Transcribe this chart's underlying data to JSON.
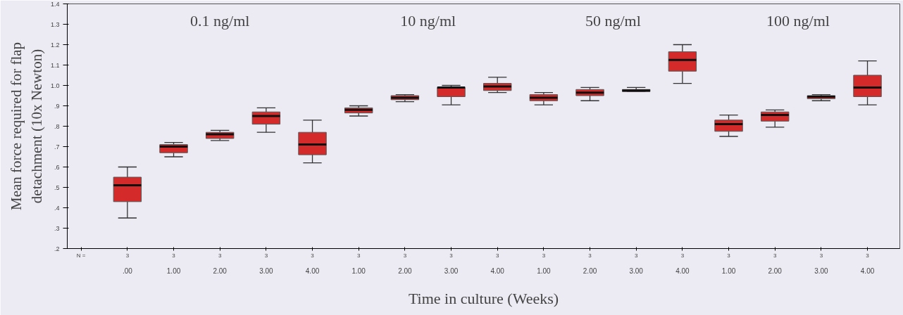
{
  "chart_data": {
    "type": "box",
    "xlabel": "Time in culture (Weeks)",
    "ylabel": "Mean force required for flap detachment (10x Newton)",
    "categories": [
      ".00",
      "1.00",
      "2.00",
      "3.00",
      "4.00",
      "1.00",
      "2.00",
      "3.00",
      "4.00",
      "1.00",
      "2.00",
      "3.00",
      "4.00",
      "1.00",
      "2.00",
      "3.00",
      "4.00"
    ],
    "series": [
      {
        "color": "#d42a2a",
        "boxes": [
          {
            "low": 0.35,
            "q1": 0.43,
            "median": 0.51,
            "q3": 0.55,
            "high": 0.6
          },
          {
            "low": 0.65,
            "q1": 0.67,
            "median": 0.7,
            "q3": 0.71,
            "high": 0.72
          },
          {
            "low": 0.73,
            "q1": 0.74,
            "median": 0.76,
            "q3": 0.77,
            "high": 0.78
          },
          {
            "low": 0.77,
            "q1": 0.81,
            "median": 0.85,
            "q3": 0.87,
            "high": 0.89
          },
          {
            "low": 0.62,
            "q1": 0.66,
            "median": 0.71,
            "q3": 0.77,
            "high": 0.83
          },
          {
            "low": 0.85,
            "q1": 0.865,
            "median": 0.88,
            "q3": 0.89,
            "high": 0.9
          },
          {
            "low": 0.92,
            "q1": 0.93,
            "median": 0.94,
            "q3": 0.95,
            "high": 0.955
          },
          {
            "low": 0.905,
            "q1": 0.945,
            "median": 0.99,
            "q3": 0.99,
            "high": 1.0
          },
          {
            "low": 0.965,
            "q1": 0.975,
            "median": 0.995,
            "q3": 1.01,
            "high": 1.04
          },
          {
            "low": 0.905,
            "q1": 0.925,
            "median": 0.94,
            "q3": 0.955,
            "high": 0.965
          },
          {
            "low": 0.925,
            "q1": 0.95,
            "median": 0.965,
            "q3": 0.98,
            "high": 0.99
          },
          {
            "low": 0.97,
            "q1": 0.97,
            "median": 0.975,
            "q3": 0.98,
            "high": 0.99
          },
          {
            "low": 1.01,
            "q1": 1.07,
            "median": 1.125,
            "q3": 1.165,
            "high": 1.2
          },
          {
            "low": 0.75,
            "q1": 0.775,
            "median": 0.81,
            "q3": 0.83,
            "high": 0.855
          },
          {
            "low": 0.795,
            "q1": 0.825,
            "median": 0.855,
            "q3": 0.87,
            "high": 0.88
          },
          {
            "low": 0.925,
            "q1": 0.935,
            "median": 0.945,
            "q3": 0.95,
            "high": 0.955
          },
          {
            "low": 0.905,
            "q1": 0.945,
            "median": 0.99,
            "q3": 1.05,
            "high": 1.12
          }
        ]
      }
    ],
    "ylim": [
      0.2,
      1.4
    ],
    "yticks": [
      {
        "value": 0.2,
        "label": ".2"
      },
      {
        "value": 0.3,
        "label": ".3"
      },
      {
        "value": 0.4,
        "label": ".4"
      },
      {
        "value": 0.5,
        "label": ".5"
      },
      {
        "value": 0.6,
        "label": ".6"
      },
      {
        "value": 0.7,
        "label": ".7"
      },
      {
        "value": 0.8,
        "label": ".8"
      },
      {
        "value": 0.9,
        "label": ".9"
      },
      {
        "value": 1.0,
        "label": "1.0"
      },
      1.1,
      1.2,
      1.3,
      1.4
    ],
    "grid": false,
    "annotations": [
      "0.1 ng/ml",
      "10 ng/ml",
      "50 ng/ml",
      "100 ng/ml",
      "N =",
      "3",
      "3",
      "3",
      "3",
      "3",
      "3",
      "3",
      "3",
      "3",
      "3",
      "3",
      "3",
      "3",
      "3",
      "3",
      "3",
      "3"
    ]
  }
}
